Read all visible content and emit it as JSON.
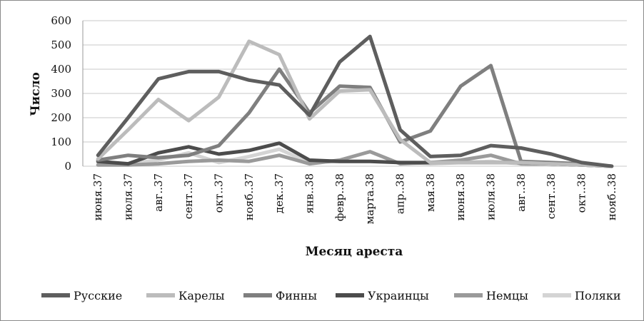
{
  "chart_data": {
    "type": "line",
    "title": "",
    "xlabel": "Месяц ареста",
    "ylabel": "Число",
    "ylim": [
      0,
      600
    ],
    "yticks": [
      0,
      100,
      200,
      300,
      400,
      500,
      600
    ],
    "grid": "horizontal",
    "legend_position": "bottom",
    "categories": [
      "июня.37",
      "июля.37",
      "авг..37",
      "сент..37",
      "окт..37",
      "нояб..37",
      "дек..37",
      "янв..38",
      "февр..38",
      "марта.38",
      "апр..38",
      "мая.38",
      "июня.38",
      "июля.38",
      "авг..38",
      "сент..38",
      "окт..38",
      "нояб..38"
    ],
    "series": [
      {
        "name": "Русские",
        "color": "#5e5e5e",
        "values": [
          45,
          200,
          360,
          390,
          390,
          355,
          335,
          210,
          430,
          535,
          150,
          40,
          45,
          85,
          75,
          50,
          15,
          0
        ]
      },
      {
        "name": "Карелы",
        "color": "#bcbcbc",
        "values": [
          30,
          150,
          275,
          188,
          285,
          515,
          460,
          195,
          310,
          315,
          110,
          15,
          15,
          15,
          15,
          10,
          5,
          0
        ]
      },
      {
        "name": "Финны",
        "color": "#7f7f7f",
        "values": [
          25,
          45,
          35,
          45,
          85,
          220,
          400,
          220,
          330,
          325,
          100,
          145,
          330,
          415,
          20,
          15,
          10,
          0
        ]
      },
      {
        "name": "Украинцы",
        "color": "#4c4c4c",
        "values": [
          20,
          10,
          55,
          80,
          50,
          65,
          95,
          25,
          20,
          20,
          15,
          15,
          15,
          15,
          15,
          10,
          5,
          0
        ]
      },
      {
        "name": "Немцы",
        "color": "#9a9a9a",
        "values": [
          5,
          5,
          10,
          20,
          25,
          20,
          45,
          10,
          25,
          60,
          10,
          15,
          25,
          45,
          10,
          10,
          5,
          0
        ]
      },
      {
        "name": "Поляки",
        "color": "#d4d4d4",
        "values": [
          15,
          10,
          25,
          55,
          15,
          40,
          70,
          15,
          20,
          20,
          15,
          10,
          15,
          20,
          10,
          5,
          5,
          0
        ]
      }
    ]
  }
}
